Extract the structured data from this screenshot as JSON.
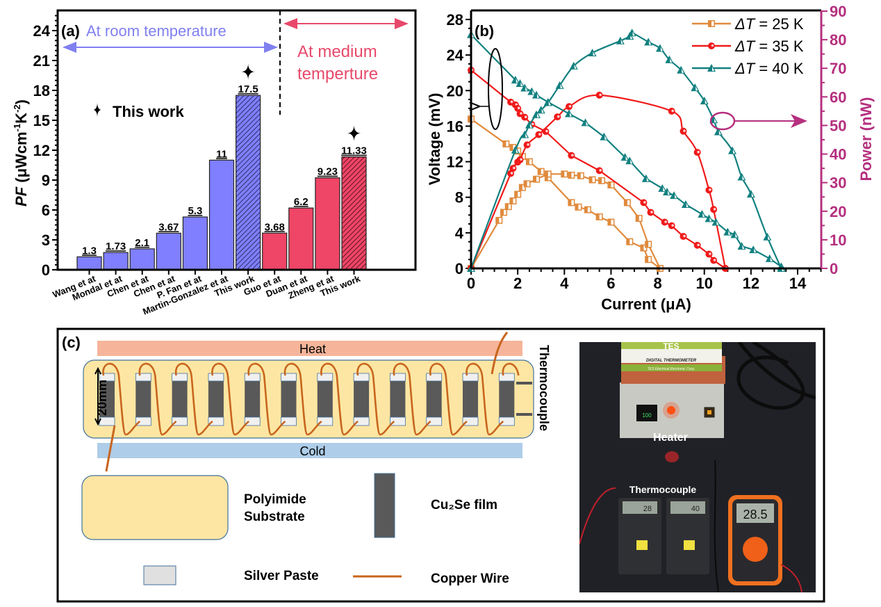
{
  "chart_data": [
    {
      "panel_label": "(a)",
      "type": "bar",
      "title": "",
      "xlabel": "",
      "ylabel": "PF (μWcm⁻¹K⁻²)",
      "ylabel_italic_part": "PF",
      "ylabel_rest": " (μWcm",
      "ylabel_sup1": "-1",
      "ylabel_mid": "K",
      "ylabel_sup2": "-2",
      "ylabel_end": ")",
      "ylim": [
        0,
        26
      ],
      "yticks": [
        0,
        3,
        6,
        9,
        12,
        15,
        18,
        21,
        24
      ],
      "categories": [
        "Wang et at",
        "Mondal et at",
        "Chen et at",
        "Chen et at",
        "P. Fan et at",
        "Martin-Gonzalez et at",
        "This work",
        "Guo et at",
        "Duan et at",
        "Zheng et at",
        "This work"
      ],
      "values": [
        1.3,
        1.73,
        2.1,
        3.67,
        5.3,
        11,
        17.5,
        3.68,
        6.2,
        9.23,
        11.33
      ],
      "value_labels": [
        "1.3",
        "1.73",
        "2.1",
        "3.67",
        "5.3",
        "11",
        "17.5",
        "3.68",
        "6.2",
        "9.23",
        "11.33"
      ],
      "groups": [
        "room",
        "room",
        "room",
        "room",
        "room",
        "room",
        "room",
        "medium",
        "medium",
        "medium",
        "medium"
      ],
      "hatched": [
        false,
        false,
        false,
        false,
        false,
        false,
        true,
        false,
        false,
        false,
        true
      ],
      "starred": [
        false,
        false,
        false,
        false,
        false,
        false,
        true,
        false,
        false,
        false,
        true
      ],
      "colors": {
        "room": "#7f7fff",
        "medium": "#ef4566",
        "text_room": "#8080f0",
        "text_medium": "#e8496a"
      },
      "annotations": {
        "room_region": "At room temperature",
        "medium_region_line1": "At medium",
        "medium_region_line2": "temperture",
        "legend_star": "This work"
      }
    },
    {
      "panel_label": "(b)",
      "type": "line",
      "xlabel": "Current (μA)",
      "ylabel": "Voltage (mV)",
      "ylabel_right": "Power (nW)",
      "xlim": [
        0,
        15
      ],
      "ylim": [
        0,
        28
      ],
      "ylim_right": [
        0,
        90
      ],
      "xticks": [
        0,
        2,
        4,
        6,
        8,
        10,
        12,
        14
      ],
      "yticks": [
        0,
        4,
        8,
        12,
        16,
        20,
        24,
        28
      ],
      "yticks_right": [
        0,
        10,
        20,
        30,
        40,
        50,
        60,
        70,
        80,
        90
      ],
      "legend_position": "top-right",
      "colors": {
        "axis_right": "#b5307e",
        "dT25": "#e08a3c",
        "dT35": "#f01a1a",
        "dT40": "#128080"
      },
      "series": [
        {
          "name": "ΔT = 25 K",
          "delta_label": "ΔT",
          "value_label": " = 25 K",
          "key": "dT25",
          "marker": "square",
          "voltage": {
            "x": [
              0,
              1.5,
              1.8,
              2.0,
              2.2,
              2.5,
              3.0,
              3.3,
              4.3,
              4.6,
              5.0,
              5.5,
              6.0,
              6.8,
              7.4,
              7.6,
              8.1
            ],
            "y": [
              16.8,
              14.0,
              13.6,
              13.2,
              12.6,
              12.0,
              10.9,
              10.2,
              7.4,
              6.9,
              6.6,
              5.8,
              5.2,
              3.0,
              2.3,
              1.0,
              0
            ]
          },
          "power": {
            "x": [
              0,
              1.2,
              1.4,
              1.6,
              1.8,
              2.0,
              2.2,
              2.4,
              2.8,
              3.3,
              4.0,
              4.3,
              4.7,
              5.2,
              5.6,
              6.0,
              6.7,
              7.2,
              7.6,
              8.1
            ],
            "y": [
              0,
              16.8,
              19.6,
              21.6,
              23.6,
              25.9,
              28.3,
              29.6,
              31.2,
              33.0,
              33.0,
              32.6,
              32.4,
              31.0,
              30.7,
              29.2,
              23.0,
              17.5,
              8.4,
              0
            ]
          }
        },
        {
          "name": "ΔT = 35 K",
          "delta_label": "ΔT",
          "value_label": " = 35 K",
          "key": "dT35",
          "marker": "circle",
          "voltage": {
            "x": [
              0,
              1.7,
              1.9,
              2.0,
              2.1,
              2.3,
              2.6,
              3.2,
              4.3,
              5.5,
              7.4,
              7.7,
              8.3,
              8.6,
              9.1,
              9.7,
              10.2,
              10.4,
              10.9
            ],
            "y": [
              22.3,
              18.7,
              18.4,
              18.0,
              17.4,
              17.0,
              16.2,
              15.4,
              12.7,
              11.0,
              7.4,
              6.3,
              5.2,
              4.8,
              3.6,
              2.6,
              1.6,
              0.9,
              0
            ]
          },
          "power": {
            "x": [
              0,
              1.7,
              1.8,
              2.0,
              2.1,
              2.4,
              2.9,
              3.7,
              4.2,
              5.5,
              8.6,
              9.1,
              9.7,
              10.2,
              10.4,
              10.9
            ],
            "y": [
              0,
              33.2,
              35.0,
              37.2,
              38.0,
              43.2,
              46.8,
              53.0,
              56.6,
              60.6,
              55.0,
              48.0,
              40.6,
              27.4,
              20.6,
              0
            ]
          }
        },
        {
          "name": "ΔT = 40 K",
          "delta_label": "ΔT",
          "value_label": " = 40 K",
          "key": "dT40",
          "marker": "triangle",
          "voltage": {
            "x": [
              0,
              1.9,
              2.1,
              2.3,
              2.6,
              2.8,
              3.3,
              4.2,
              4.9,
              5.7,
              6.6,
              6.8,
              7.5,
              8.2,
              8.4,
              8.7,
              9.2,
              9.9,
              10.2,
              10.5,
              11.0,
              11.3,
              11.6,
              12.1,
              12.8,
              13.3
            ],
            "y": [
              26.3,
              21.2,
              20.8,
              20.3,
              19.9,
              19.5,
              18.7,
              17.4,
              16.4,
              14.8,
              12.5,
              12.1,
              10.1,
              9.0,
              8.6,
              8.2,
              7.2,
              6.1,
              5.6,
              5.2,
              4.1,
              3.8,
              2.5,
              2.1,
              1.1,
              0.2
            ]
          },
          "power": {
            "x": [
              0,
              1.9,
              2.3,
              2.5,
              2.8,
              3.0,
              3.3,
              3.8,
              4.4,
              5.2,
              6.4,
              6.8,
              6.9,
              7.6,
              8.1,
              8.5,
              9.0,
              9.6,
              10.0,
              10.4,
              10.6,
              11.2,
              11.6,
              12.0,
              12.7,
              13.3
            ],
            "y": [
              0,
              41.4,
              46.8,
              50.2,
              53.8,
              55.4,
              58.0,
              64.0,
              70.8,
              75.4,
              79.6,
              81.2,
              82.4,
              79.2,
              77.0,
              73.0,
              69.4,
              63.2,
              58.6,
              52.0,
              47.8,
              41.2,
              32.0,
              26.0,
              11.0,
              0
            ]
          }
        }
      ],
      "annotations": {
        "left_arrow": "voltage curves → left axis",
        "right_arrow": "power curves → right axis"
      }
    }
  ],
  "panel_c": {
    "label": "(c)",
    "heat_label": "Heat",
    "cold_label": "Cold",
    "dimension_label": "20mm",
    "thermocouple_label": "Thermocouple",
    "legend": {
      "substrate_line1": "Polyimide",
      "substrate_line2": "Substrate",
      "film_label": "Cu₂Se  film",
      "paste_label": "Silver Paste",
      "wire_label": "Copper  Wire"
    },
    "colors": {
      "heat": "#f6b59a",
      "cold": "#aecde8",
      "substrate": "#fde6a3",
      "film": "#595959",
      "paste": "#f0f0f0",
      "wire": "#c8651e"
    },
    "leg_count": 12
  },
  "photo": {
    "heater_label": "Heater",
    "thermocouple_label": "Thermocouple",
    "box_text1": "DIGITAL THERMOMETER",
    "box_text2": "TES Electrical Electronic Corp.",
    "box_logo": "TES",
    "controller_display": "100",
    "meter1_reading": "28",
    "meter2_reading": "40",
    "multimeter_reading": "28.5"
  }
}
